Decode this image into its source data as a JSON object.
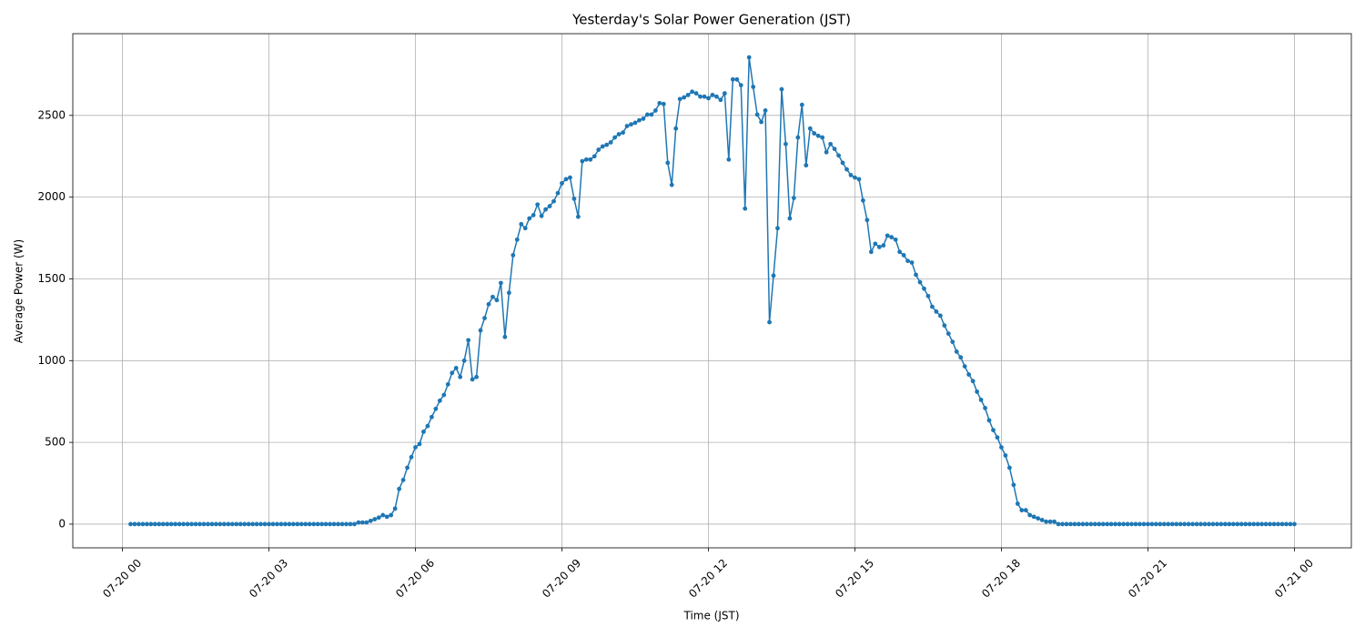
{
  "chart_data": {
    "type": "line",
    "title": "Yesterday's Solar Power Generation (JST)",
    "x_label": "Time (JST)",
    "y_label": "Average Power (W)",
    "color": "#1f77b4",
    "grid": true,
    "xlim": [
      "07-19 22:59",
      "07-21 01:10"
    ],
    "xticks": [
      {
        "value": "07-20 00:00",
        "label": "07-20 00"
      },
      {
        "value": "07-20 03:00",
        "label": "07-20 03"
      },
      {
        "value": "07-20 06:00",
        "label": "07-20 06"
      },
      {
        "value": "07-20 09:00",
        "label": "07-20 09"
      },
      {
        "value": "07-20 12:00",
        "label": "07-20 12"
      },
      {
        "value": "07-20 15:00",
        "label": "07-20 15"
      },
      {
        "value": "07-20 18:00",
        "label": "07-20 18"
      },
      {
        "value": "07-20 21:00",
        "label": "07-20 21"
      },
      {
        "value": "07-21 00:00",
        "label": "07-21 00"
      }
    ],
    "ylim": [
      -145,
      3000
    ],
    "yticks": [
      0,
      500,
      1000,
      1500,
      2000,
      2500
    ],
    "x": [
      "07-20 00:10",
      "07-20 00:15",
      "07-20 00:20",
      "07-20 00:25",
      "07-20 00:30",
      "07-20 00:35",
      "07-20 00:40",
      "07-20 00:45",
      "07-20 00:50",
      "07-20 00:55",
      "07-20 01:00",
      "07-20 01:05",
      "07-20 01:10",
      "07-20 01:15",
      "07-20 01:20",
      "07-20 01:25",
      "07-20 01:30",
      "07-20 01:35",
      "07-20 01:40",
      "07-20 01:45",
      "07-20 01:50",
      "07-20 01:55",
      "07-20 02:00",
      "07-20 02:05",
      "07-20 02:10",
      "07-20 02:15",
      "07-20 02:20",
      "07-20 02:25",
      "07-20 02:30",
      "07-20 02:35",
      "07-20 02:40",
      "07-20 02:45",
      "07-20 02:50",
      "07-20 02:55",
      "07-20 03:00",
      "07-20 03:05",
      "07-20 03:10",
      "07-20 03:15",
      "07-20 03:20",
      "07-20 03:25",
      "07-20 03:30",
      "07-20 03:35",
      "07-20 03:40",
      "07-20 03:45",
      "07-20 03:50",
      "07-20 03:55",
      "07-20 04:00",
      "07-20 04:05",
      "07-20 04:10",
      "07-20 04:15",
      "07-20 04:20",
      "07-20 04:25",
      "07-20 04:30",
      "07-20 04:35",
      "07-20 04:40",
      "07-20 04:45",
      "07-20 04:50",
      "07-20 04:55",
      "07-20 05:00",
      "07-20 05:05",
      "07-20 05:10",
      "07-20 05:15",
      "07-20 05:20",
      "07-20 05:25",
      "07-20 05:30",
      "07-20 05:35",
      "07-20 05:40",
      "07-20 05:45",
      "07-20 05:50",
      "07-20 05:55",
      "07-20 06:00",
      "07-20 06:05",
      "07-20 06:10",
      "07-20 06:15",
      "07-20 06:20",
      "07-20 06:25",
      "07-20 06:30",
      "07-20 06:35",
      "07-20 06:40",
      "07-20 06:45",
      "07-20 06:50",
      "07-20 06:55",
      "07-20 07:00",
      "07-20 07:05",
      "07-20 07:10",
      "07-20 07:15",
      "07-20 07:20",
      "07-20 07:25",
      "07-20 07:30",
      "07-20 07:35",
      "07-20 07:40",
      "07-20 07:45",
      "07-20 07:50",
      "07-20 07:55",
      "07-20 08:00",
      "07-20 08:05",
      "07-20 08:10",
      "07-20 08:15",
      "07-20 08:20",
      "07-20 08:25",
      "07-20 08:30",
      "07-20 08:35",
      "07-20 08:40",
      "07-20 08:45",
      "07-20 08:50",
      "07-20 08:55",
      "07-20 09:00",
      "07-20 09:05",
      "07-20 09:10",
      "07-20 09:15",
      "07-20 09:20",
      "07-20 09:25",
      "07-20 09:30",
      "07-20 09:35",
      "07-20 09:40",
      "07-20 09:45",
      "07-20 09:50",
      "07-20 09:55",
      "07-20 10:00",
      "07-20 10:05",
      "07-20 10:10",
      "07-20 10:15",
      "07-20 10:20",
      "07-20 10:25",
      "07-20 10:30",
      "07-20 10:35",
      "07-20 10:40",
      "07-20 10:45",
      "07-20 10:50",
      "07-20 10:55",
      "07-20 11:00",
      "07-20 11:05",
      "07-20 11:10",
      "07-20 11:15",
      "07-20 11:20",
      "07-20 11:25",
      "07-20 11:30",
      "07-20 11:35",
      "07-20 11:40",
      "07-20 11:45",
      "07-20 11:50",
      "07-20 11:55",
      "07-20 12:00",
      "07-20 12:05",
      "07-20 12:10",
      "07-20 12:15",
      "07-20 12:20",
      "07-20 12:25",
      "07-20 12:30",
      "07-20 12:35",
      "07-20 12:40",
      "07-20 12:45",
      "07-20 12:50",
      "07-20 12:55",
      "07-20 13:00",
      "07-20 13:05",
      "07-20 13:10",
      "07-20 13:15",
      "07-20 13:20",
      "07-20 13:25",
      "07-20 13:30",
      "07-20 13:35",
      "07-20 13:40",
      "07-20 13:45",
      "07-20 13:50",
      "07-20 13:55",
      "07-20 14:00",
      "07-20 14:05",
      "07-20 14:10",
      "07-20 14:15",
      "07-20 14:20",
      "07-20 14:25",
      "07-20 14:30",
      "07-20 14:35",
      "07-20 14:40",
      "07-20 14:45",
      "07-20 14:50",
      "07-20 14:55",
      "07-20 15:00",
      "07-20 15:05",
      "07-20 15:10",
      "07-20 15:15",
      "07-20 15:20",
      "07-20 15:25",
      "07-20 15:30",
      "07-20 15:35",
      "07-20 15:40",
      "07-20 15:45",
      "07-20 15:50",
      "07-20 15:55",
      "07-20 16:00",
      "07-20 16:05",
      "07-20 16:10",
      "07-20 16:15",
      "07-20 16:20",
      "07-20 16:25",
      "07-20 16:30",
      "07-20 16:35",
      "07-20 16:40",
      "07-20 16:45",
      "07-20 16:50",
      "07-20 16:55",
      "07-20 17:00",
      "07-20 17:05",
      "07-20 17:10",
      "07-20 17:15",
      "07-20 17:20",
      "07-20 17:25",
      "07-20 17:30",
      "07-20 17:35",
      "07-20 17:40",
      "07-20 17:45",
      "07-20 17:50",
      "07-20 17:55",
      "07-20 18:00",
      "07-20 18:05",
      "07-20 18:10",
      "07-20 18:15",
      "07-20 18:20",
      "07-20 18:25",
      "07-20 18:30",
      "07-20 18:35",
      "07-20 18:40",
      "07-20 18:45",
      "07-20 18:50",
      "07-20 18:55",
      "07-20 19:00",
      "07-20 19:05",
      "07-20 19:10",
      "07-20 19:15",
      "07-20 19:20",
      "07-20 19:25",
      "07-20 19:30",
      "07-20 19:35",
      "07-20 19:40",
      "07-20 19:45",
      "07-20 19:50",
      "07-20 19:55",
      "07-20 20:00",
      "07-20 20:05",
      "07-20 20:10",
      "07-20 20:15",
      "07-20 20:20",
      "07-20 20:25",
      "07-20 20:30",
      "07-20 20:35",
      "07-20 20:40",
      "07-20 20:45",
      "07-20 20:50",
      "07-20 20:55",
      "07-20 21:00",
      "07-20 21:05",
      "07-20 21:10",
      "07-20 21:15",
      "07-20 21:20",
      "07-20 21:25",
      "07-20 21:30",
      "07-20 21:35",
      "07-20 21:40",
      "07-20 21:45",
      "07-20 21:50",
      "07-20 21:55",
      "07-20 22:00",
      "07-20 22:05",
      "07-20 22:10",
      "07-20 22:15",
      "07-20 22:20",
      "07-20 22:25",
      "07-20 22:30",
      "07-20 22:35",
      "07-20 22:40",
      "07-20 22:45",
      "07-20 22:50",
      "07-20 22:55",
      "07-20 23:00",
      "07-20 23:05",
      "07-20 23:10",
      "07-20 23:15",
      "07-20 23:20",
      "07-20 23:25",
      "07-20 23:30",
      "07-20 23:35",
      "07-20 23:40",
      "07-20 23:45",
      "07-20 23:50",
      "07-20 23:55",
      "07-21 00:00"
    ],
    "values": [
      0,
      0,
      0,
      0,
      0,
      0,
      0,
      0,
      0,
      0,
      0,
      0,
      0,
      0,
      0,
      0,
      0,
      0,
      0,
      0,
      0,
      0,
      0,
      0,
      0,
      0,
      0,
      0,
      0,
      0,
      0,
      0,
      0,
      0,
      0,
      0,
      0,
      0,
      0,
      0,
      0,
      0,
      0,
      0,
      0,
      0,
      0,
      0,
      0,
      0,
      0,
      0,
      0,
      0,
      0,
      0,
      10,
      10,
      10,
      20,
      30,
      40,
      55,
      45,
      55,
      95,
      215,
      270,
      345,
      410,
      470,
      490,
      565,
      600,
      655,
      705,
      755,
      790,
      855,
      925,
      955,
      900,
      1000,
      1125,
      885,
      900,
      1185,
      1260,
      1345,
      1390,
      1370,
      1475,
      1145,
      1415,
      1645,
      1740,
      1835,
      1810,
      1870,
      1890,
      1955,
      1885,
      1925,
      1945,
      1975,
      2025,
      2085,
      2110,
      2120,
      1990,
      1880,
      2220,
      2230,
      2230,
      2250,
      2290,
      2310,
      2320,
      2335,
      2365,
      2385,
      2395,
      2435,
      2445,
      2455,
      2470,
      2480,
      2505,
      2505,
      2530,
      2575,
      2570,
      2210,
      2075,
      2420,
      2600,
      2610,
      2625,
      2645,
      2635,
      2615,
      2615,
      2605,
      2625,
      2615,
      2595,
      2635,
      2230,
      2720,
      2720,
      2685,
      1930,
      2855,
      2675,
      2505,
      2460,
      2530,
      1235,
      1520,
      1810,
      2660,
      2325,
      1870,
      1995,
      2365,
      2565,
      2195,
      2420,
      2390,
      2375,
      2365,
      2275,
      2325,
      2295,
      2255,
      2210,
      2170,
      2135,
      2120,
      2110,
      1980,
      1860,
      1665,
      1715,
      1695,
      1705,
      1765,
      1755,
      1740,
      1665,
      1645,
      1610,
      1600,
      1525,
      1480,
      1440,
      1395,
      1330,
      1300,
      1275,
      1215,
      1165,
      1115,
      1055,
      1020,
      965,
      915,
      875,
      810,
      760,
      710,
      635,
      575,
      530,
      470,
      420,
      345,
      240,
      125,
      85,
      85,
      55,
      45,
      35,
      25,
      15,
      15,
      15,
      0,
      0,
      0,
      0,
      0,
      0,
      0,
      0,
      0,
      0,
      0,
      0,
      0,
      0,
      0,
      0,
      0,
      0,
      0,
      0,
      0,
      0,
      0,
      0,
      0,
      0,
      0,
      0,
      0,
      0,
      0,
      0,
      0,
      0,
      0,
      0,
      0,
      0,
      0,
      0,
      0,
      0,
      0,
      0,
      0,
      0,
      0,
      0,
      0,
      0,
      0,
      0,
      0,
      0,
      0,
      0,
      0,
      0,
      0
    ]
  }
}
